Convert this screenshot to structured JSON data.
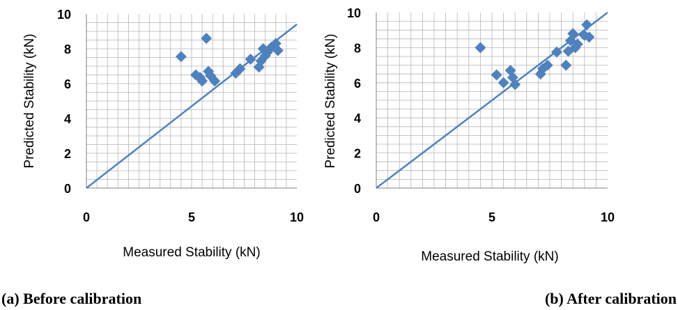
{
  "captions": {
    "a": "(a)  Before calibration",
    "b": "(b) After calibration"
  },
  "chart_data": [
    {
      "type": "scatter",
      "xlabel": "Measured Stability (kN)",
      "ylabel": "Predicted Stability (kN)",
      "xlim": [
        0,
        10
      ],
      "ylim": [
        0,
        10
      ],
      "xticks": [
        0,
        5,
        10
      ],
      "yticks": [
        0,
        2,
        4,
        6,
        8,
        10
      ],
      "grid": true,
      "marker_color": "#4F81BD",
      "line_color": "#4F81BD",
      "reference_line": {
        "x": [
          0,
          10
        ],
        "y": [
          0,
          9.4
        ]
      },
      "points": [
        [
          4.5,
          7.55
        ],
        [
          5.7,
          8.6
        ],
        [
          5.2,
          6.5
        ],
        [
          5.4,
          6.35
        ],
        [
          5.5,
          6.15
        ],
        [
          5.8,
          6.7
        ],
        [
          5.9,
          6.45
        ],
        [
          6.1,
          6.15
        ],
        [
          7.1,
          6.6
        ],
        [
          7.3,
          6.85
        ],
        [
          7.8,
          7.4
        ],
        [
          8.2,
          6.95
        ],
        [
          8.3,
          7.3
        ],
        [
          8.4,
          8.0
        ],
        [
          8.5,
          7.6
        ],
        [
          8.6,
          7.8
        ],
        [
          8.8,
          8.1
        ],
        [
          9.0,
          8.3
        ],
        [
          9.1,
          7.9
        ]
      ]
    },
    {
      "type": "scatter",
      "xlabel": "Measured Stability (kN)",
      "ylabel": "Predicted Stability (kN)",
      "xlim": [
        0,
        10
      ],
      "ylim": [
        0,
        10
      ],
      "xticks": [
        0,
        5,
        10
      ],
      "yticks": [
        0,
        2,
        4,
        6,
        8,
        10
      ],
      "grid": true,
      "marker_color": "#4F81BD",
      "line_color": "#4F81BD",
      "reference_line": {
        "x": [
          0,
          10
        ],
        "y": [
          0,
          10
        ]
      },
      "points": [
        [
          4.5,
          8.0
        ],
        [
          5.2,
          6.45
        ],
        [
          5.5,
          6.0
        ],
        [
          5.8,
          6.7
        ],
        [
          5.9,
          6.3
        ],
        [
          6.0,
          5.9
        ],
        [
          7.1,
          6.5
        ],
        [
          7.2,
          6.8
        ],
        [
          7.4,
          7.0
        ],
        [
          7.8,
          7.75
        ],
        [
          8.2,
          7.0
        ],
        [
          8.3,
          7.8
        ],
        [
          8.4,
          8.4
        ],
        [
          8.5,
          8.8
        ],
        [
          8.6,
          8.0
        ],
        [
          8.7,
          8.2
        ],
        [
          9.0,
          8.7
        ],
        [
          9.1,
          9.3
        ],
        [
          9.2,
          8.6
        ]
      ]
    }
  ]
}
